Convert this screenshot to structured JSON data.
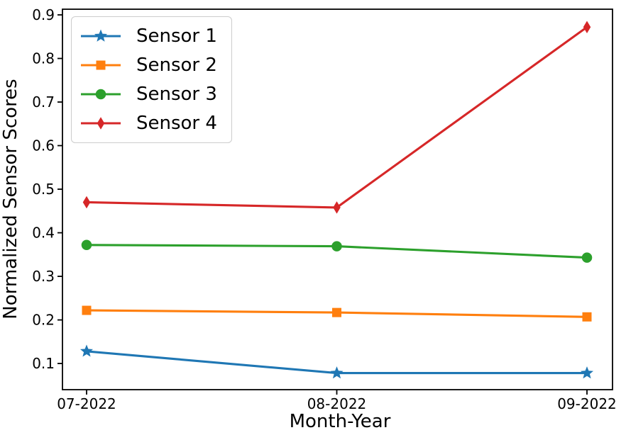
{
  "chart_data": {
    "type": "line",
    "title": "",
    "xlabel": "Month-Year",
    "ylabel": "Normalized Sensor Scores",
    "categories": [
      "07-2022",
      "08-2022",
      "09-2022"
    ],
    "series": [
      {
        "name": "Sensor 1",
        "color": "#1f77b4",
        "marker": "star",
        "values": [
          0.128,
          0.078,
          0.078
        ]
      },
      {
        "name": "Sensor 2",
        "color": "#ff7f0e",
        "marker": "square",
        "values": [
          0.222,
          0.217,
          0.207
        ]
      },
      {
        "name": "Sensor 3",
        "color": "#2ca02c",
        "marker": "circle",
        "values": [
          0.372,
          0.369,
          0.343
        ]
      },
      {
        "name": "Sensor 4",
        "color": "#d62728",
        "marker": "diamond",
        "values": [
          0.47,
          0.458,
          0.872
        ]
      }
    ],
    "y_ticks": [
      0.1,
      0.2,
      0.3,
      0.4,
      0.5,
      0.6,
      0.7,
      0.8,
      0.9
    ],
    "y_tick_labels": [
      "0.1",
      "0.2",
      "0.3",
      "0.4",
      "0.5",
      "0.6",
      "0.7",
      "0.8",
      "0.9"
    ],
    "ylim": [
      0.04,
      0.913
    ],
    "grid": false,
    "legend_position": "upper-left",
    "axis_color": "#000000",
    "background_color": "#ffffff"
  }
}
